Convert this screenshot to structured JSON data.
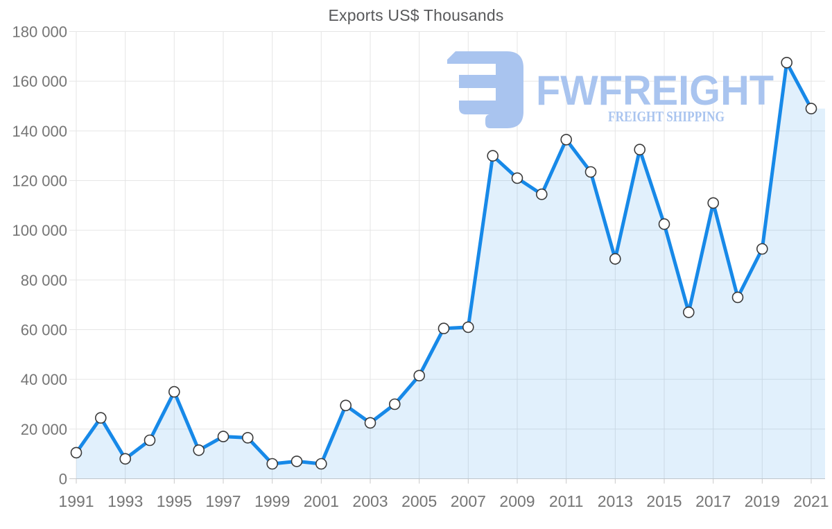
{
  "chart_data": {
    "type": "area",
    "title": "Exports US$ Thousands",
    "xlabel": "",
    "ylabel": "",
    "x": [
      1991,
      1992,
      1993,
      1994,
      1995,
      1996,
      1997,
      1998,
      1999,
      2000,
      2001,
      2002,
      2003,
      2004,
      2005,
      2006,
      2007,
      2008,
      2009,
      2010,
      2011,
      2012,
      2013,
      2014,
      2015,
      2016,
      2017,
      2018,
      2019,
      2020,
      2021
    ],
    "values": [
      10500,
      24500,
      8000,
      15500,
      35000,
      11500,
      17000,
      16500,
      6000,
      7000,
      6000,
      29500,
      22500,
      30000,
      41500,
      60500,
      61000,
      130000,
      121000,
      114500,
      136500,
      123500,
      88500,
      132500,
      102500,
      67000,
      111000,
      73000,
      92500,
      167500,
      149000
    ],
    "ylim": [
      0,
      180000
    ],
    "y_tick_labels": [
      "0",
      "20 000",
      "40 000",
      "60 000",
      "80 000",
      "100 000",
      "120 000",
      "140 000",
      "160 000",
      "180 000"
    ],
    "x_tick_labels": [
      "1991",
      "1993",
      "1995",
      "1997",
      "1999",
      "2001",
      "2003",
      "2005",
      "2007",
      "2009",
      "2011",
      "2013",
      "2015",
      "2017",
      "2019",
      "2021"
    ],
    "grid": true,
    "legend_position": "none",
    "line_color": "#1789e8",
    "fill_color": "rgba(23,137,232,0.13)",
    "marker_fill": "#ffffff",
    "marker_stroke": "#3a3a3a",
    "grid_color": "#e5e5e5",
    "axis_line_color": "#c9c9c9",
    "axis_text_color": "#757575",
    "title_color": "#58595b"
  },
  "watermark": {
    "brand": "FWFREIGHT",
    "tagline": "FREIGHT SHIPPING",
    "color": "#a9c4ef",
    "logo_icon": "mirrored-f-freight-logo"
  }
}
